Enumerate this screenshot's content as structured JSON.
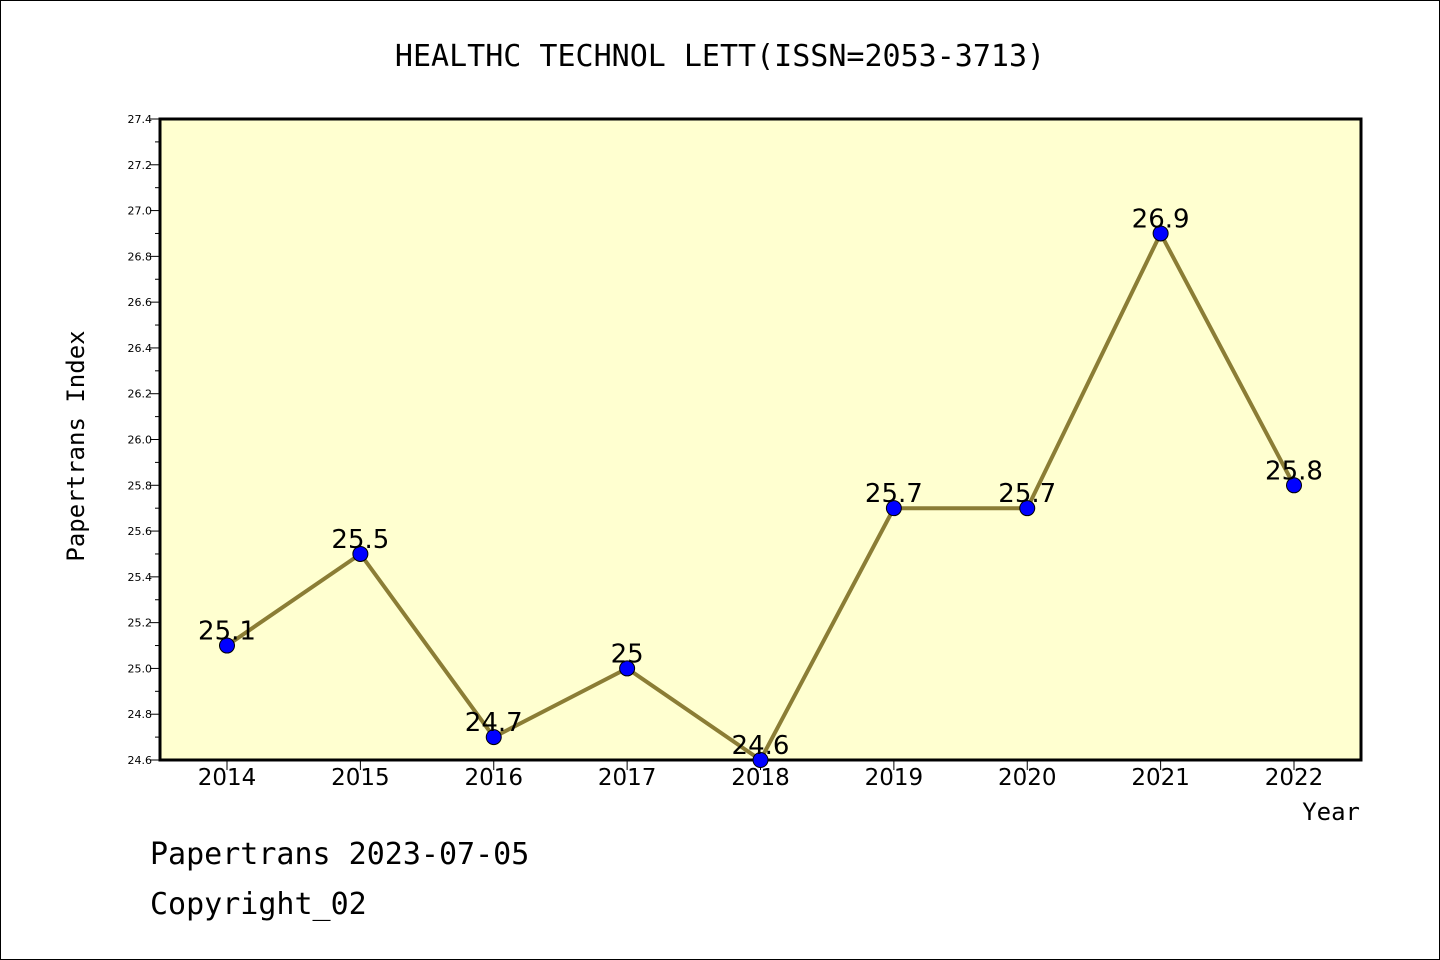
{
  "chart_data": {
    "type": "line",
    "title": "HEALTHC TECHNOL LETT(ISSN=2053-3713)",
    "xlabel": "Year",
    "ylabel": "Papertrans Index",
    "x": [
      "2014",
      "2015",
      "2016",
      "2017",
      "2018",
      "2019",
      "2020",
      "2021",
      "2022"
    ],
    "values": [
      25.1,
      25.5,
      24.7,
      25.0,
      24.6,
      25.7,
      25.7,
      26.9,
      25.8
    ],
    "value_labels": [
      "25.1",
      "25.5",
      "24.7",
      "25",
      "24.6",
      "25.7",
      "25.7",
      "26.9",
      "25.8"
    ],
    "ylim": [
      24.6,
      27.4
    ],
    "yticks": [
      "24.6",
      "24.8",
      "25.0",
      "25.2",
      "25.4",
      "25.6",
      "25.8",
      "26.0",
      "26.2",
      "26.4",
      "26.6",
      "26.8",
      "27.0",
      "27.2",
      "27.4"
    ],
    "grid": false,
    "colors": {
      "plot_background": "#ffffd0",
      "line": "#8b7d35",
      "marker": "#0000ff"
    }
  },
  "footer": {
    "source": "Papertrans 2023-07-05",
    "copyright": "Copyright_02"
  }
}
